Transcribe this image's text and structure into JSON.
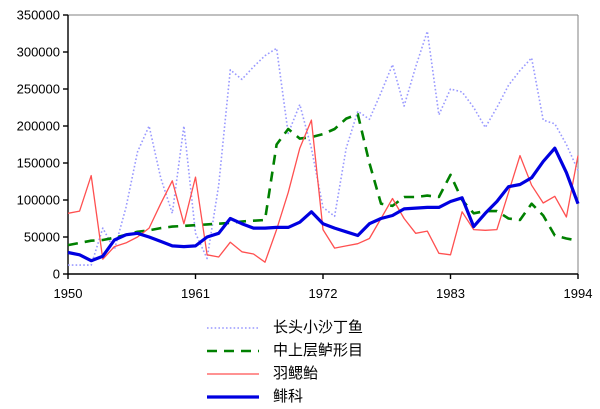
{
  "colors": {
    "background": "#FFFFFF",
    "axis": "#000000",
    "plot_border": "#808080",
    "text": "#000000"
  },
  "chart_data": {
    "type": "line",
    "title": "",
    "xlabel": "",
    "ylabel": "",
    "grid": false,
    "legend_position": "bottom",
    "xlim": [
      1950,
      1994
    ],
    "ylim": [
      0,
      350000
    ],
    "x_ticks": [
      1950,
      1961,
      1972,
      1983,
      1994
    ],
    "y_ticks": [
      0,
      50000,
      100000,
      150000,
      200000,
      250000,
      300000,
      350000
    ],
    "x": [
      1950,
      1951,
      1952,
      1953,
      1954,
      1955,
      1956,
      1957,
      1958,
      1959,
      1960,
      1961,
      1962,
      1963,
      1964,
      1965,
      1966,
      1967,
      1968,
      1969,
      1970,
      1971,
      1972,
      1973,
      1974,
      1975,
      1976,
      1977,
      1978,
      1979,
      1980,
      1981,
      1982,
      1983,
      1984,
      1985,
      1986,
      1987,
      1988,
      1989,
      1990,
      1991,
      1992,
      1993,
      1994
    ],
    "series": [
      {
        "name": "长头小沙丁鱼",
        "color": "#9999FF",
        "style": "dotted",
        "width": 1.6,
        "values": [
          12000,
          12000,
          12000,
          62000,
          33000,
          90000,
          165000,
          200000,
          130000,
          82000,
          200000,
          55000,
          21000,
          120000,
          276000,
          263000,
          280000,
          295000,
          305000,
          190000,
          229000,
          170000,
          90000,
          78000,
          170000,
          220000,
          209000,
          245000,
          283000,
          227000,
          280000,
          328000,
          215000,
          250000,
          246000,
          225000,
          198000,
          225000,
          255000,
          275000,
          292000,
          208000,
          203000,
          175000,
          140000
        ]
      },
      {
        "name": "中上层鲈形目",
        "color": "#008000",
        "style": "dashed",
        "width": 2.6,
        "values": [
          39000,
          42000,
          45000,
          46000,
          49000,
          53000,
          57000,
          59000,
          62000,
          64000,
          65000,
          66000,
          67000,
          68000,
          69000,
          71000,
          72000,
          73000,
          175000,
          196000,
          183000,
          185000,
          189000,
          196000,
          210000,
          216000,
          150000,
          95000,
          92000,
          104000,
          104000,
          106000,
          104000,
          134000,
          100000,
          82000,
          85000,
          85000,
          75000,
          73000,
          95000,
          79000,
          52000,
          48000,
          45000
        ]
      },
      {
        "name": "羽鳃鲐",
        "color": "#FF5050",
        "style": "solid",
        "width": 1.3,
        "values": [
          82000,
          85000,
          133000,
          20000,
          37000,
          42000,
          50000,
          62000,
          95000,
          126000,
          68000,
          131000,
          26000,
          23000,
          43000,
          30000,
          27000,
          16000,
          60000,
          110000,
          170000,
          208000,
          60000,
          35000,
          38000,
          41000,
          48000,
          75000,
          102000,
          75000,
          55000,
          58000,
          28000,
          26000,
          84000,
          60000,
          59000,
          60000,
          110000,
          160000,
          120000,
          96000,
          105000,
          77000,
          160000
        ]
      },
      {
        "name": "鲱科",
        "color": "#0000E0",
        "style": "solid",
        "width": 3.2,
        "values": [
          29000,
          26000,
          18000,
          24000,
          46000,
          53000,
          55000,
          50000,
          44000,
          38000,
          37000,
          38000,
          50000,
          55000,
          75000,
          68000,
          62000,
          62000,
          63000,
          63000,
          70000,
          84000,
          68000,
          62000,
          57000,
          52000,
          68000,
          75000,
          79000,
          88000,
          89000,
          90000,
          90000,
          98000,
          103000,
          64000,
          82000,
          98000,
          118000,
          121000,
          130000,
          152000,
          170000,
          137000,
          95000
        ]
      }
    ]
  }
}
